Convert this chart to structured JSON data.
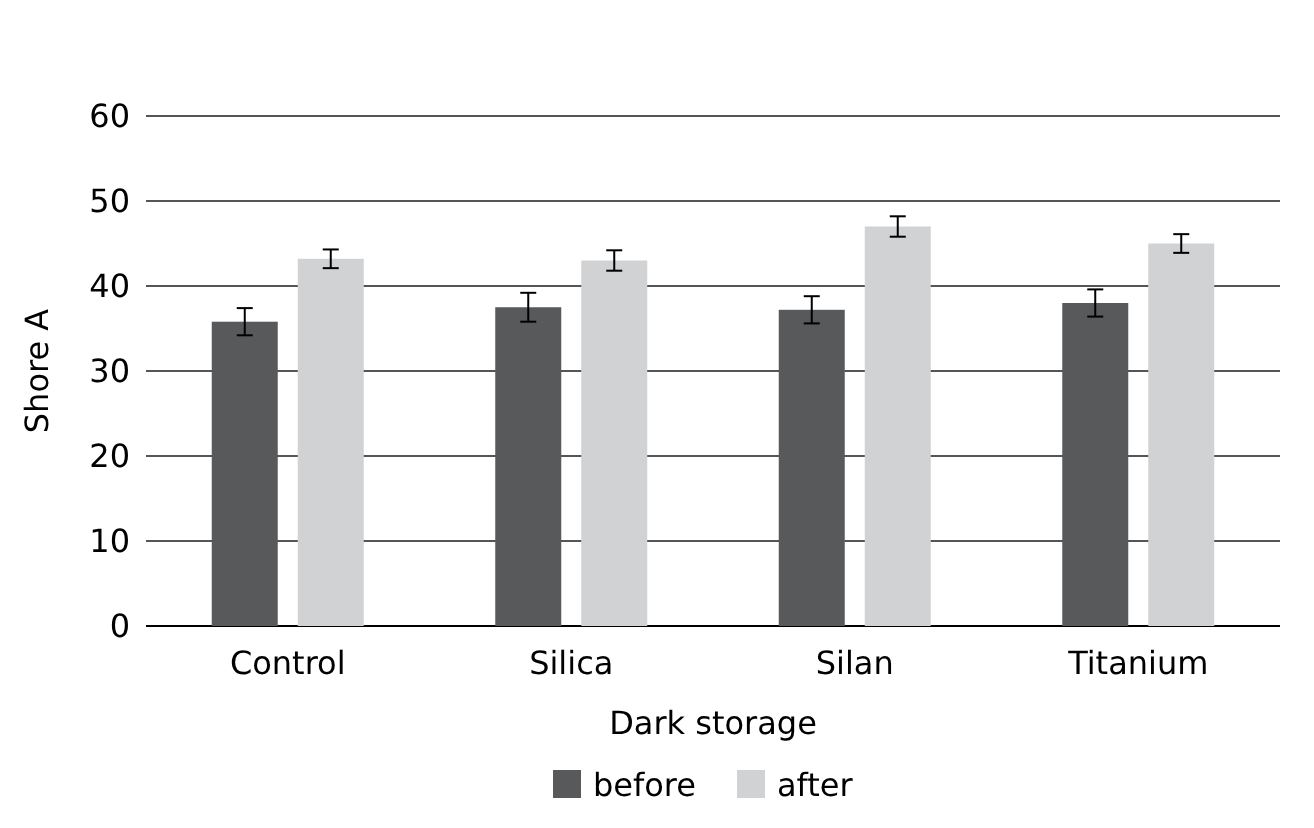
{
  "chart_data": {
    "type": "bar",
    "xlabel": "Dark storage",
    "ylabel": "Shore A",
    "categories": [
      "Control",
      "Silica",
      "Silan",
      "Titanium"
    ],
    "series": [
      {
        "name": "before",
        "color": "#58595b",
        "values": [
          35.8,
          37.5,
          37.2,
          38
        ],
        "errors": [
          1.6,
          1.7,
          1.6,
          1.6
        ]
      },
      {
        "name": "after",
        "color": "#d1d2d4",
        "values": [
          43.2,
          43,
          47,
          45
        ],
        "errors": [
          1.1,
          1.2,
          1.2,
          1.1
        ]
      }
    ],
    "ylim": [
      0,
      60
    ],
    "yticks": [
      0,
      10,
      20,
      30,
      40,
      50,
      60
    ],
    "grid": "y",
    "legend": "bottom"
  }
}
